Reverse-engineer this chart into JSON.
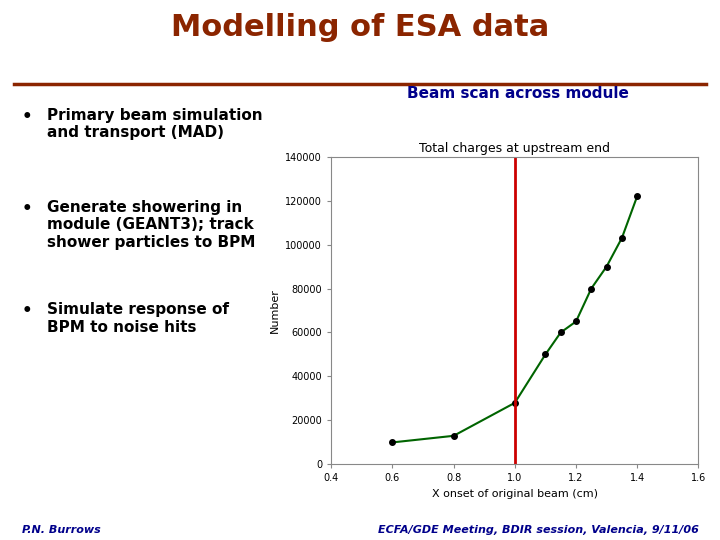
{
  "title": "Modelling of ESA data",
  "title_color": "#8B2500",
  "title_fontsize": 22,
  "separator_color": "#8B2500",
  "bullet_points": [
    "Primary beam simulation\nand transport (MAD)",
    "Generate showering in\nmodule (GEANT3); track\nshower particles to BPM",
    "Simulate response of\nBPM to noise hits"
  ],
  "bullet_fontsize": 11,
  "chart_title": "Beam scan across module",
  "chart_title_color": "#00008B",
  "chart_title_fontsize": 11,
  "chart_subtitle": "Total charges at upstream end",
  "chart_subtitle_fontsize": 9,
  "x_data": [
    0.6,
    0.8,
    1.0,
    1.1,
    1.15,
    1.2,
    1.25,
    1.3,
    1.35,
    1.4
  ],
  "y_data": [
    10000,
    13000,
    28000,
    50000,
    60000,
    65000,
    80000,
    90000,
    103000,
    122000
  ],
  "xlabel": "X onset of original beam (cm)",
  "ylabel": "Number",
  "xlim": [
    0.4,
    1.6
  ],
  "ylim": [
    0,
    140000
  ],
  "xticks": [
    0.4,
    0.6,
    0.8,
    1.0,
    1.2,
    1.4,
    1.6
  ],
  "yticks": [
    0,
    20000,
    40000,
    60000,
    80000,
    100000,
    120000,
    140000
  ],
  "vline_x": 1.0,
  "vline_color": "#CC0000",
  "line_color": "#006400",
  "marker_color": "#000000",
  "background_color": "#ffffff",
  "footer_left": "P.N. Burrows",
  "footer_right": "ECFA/GDE Meeting, BDIR session, Valencia, 9/11/06",
  "footer_color": "#00008B",
  "footer_fontsize": 8
}
